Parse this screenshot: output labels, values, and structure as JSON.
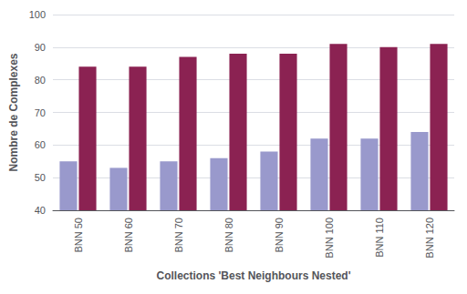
{
  "chart_data": {
    "type": "bar",
    "xlabel": "Collections 'Best Neighbours Nested'",
    "ylabel": "Nombre de Complexes",
    "categories": [
      "BNN 50",
      "BNN 60",
      "BNN 70",
      "BNN 80",
      "BNN 90",
      "BNN 100",
      "BNN 110",
      "BNN 120"
    ],
    "series": [
      {
        "color": "#9999cc",
        "values": [
          55,
          53,
          55,
          56,
          58,
          62,
          62,
          64
        ]
      },
      {
        "color": "#8B2252",
        "values": [
          84,
          84,
          87,
          88,
          88,
          91,
          90,
          91
        ]
      }
    ],
    "ylim": [
      40,
      100
    ],
    "yticks": [
      40,
      50,
      60,
      70,
      80,
      90,
      100
    ],
    "grid": true
  }
}
